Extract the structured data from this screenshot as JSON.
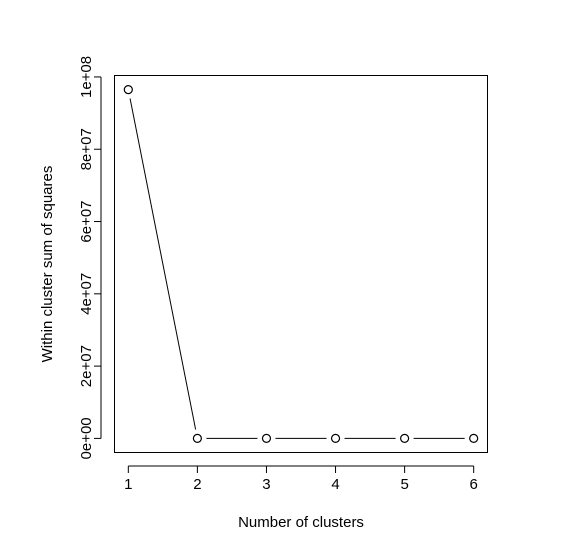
{
  "chart_data": {
    "type": "line",
    "title": "",
    "xlabel": "Number of clusters",
    "ylabel": "Within cluster sum of squares",
    "x": [
      1,
      2,
      3,
      4,
      5,
      6
    ],
    "series": [
      {
        "values": [
          96500000,
          0,
          0,
          0,
          0,
          0
        ]
      }
    ],
    "xlim": [
      0.8,
      6.2
    ],
    "ylim": [
      -3900000,
      100400000
    ],
    "x_ticks": [
      1,
      2,
      3,
      4,
      5,
      6
    ],
    "x_tick_labels": [
      "1",
      "2",
      "3",
      "4",
      "5",
      "6"
    ],
    "y_ticks": [
      0,
      20000000,
      40000000,
      60000000,
      80000000,
      100000000
    ],
    "y_tick_labels": [
      "0e+00",
      "2e+07",
      "4e+07",
      "6e+07",
      "8e+07",
      "1e+08"
    ],
    "grid": false,
    "legend": "none",
    "marker": "open-circle",
    "line_color": "#000000",
    "background": "#ffffff"
  }
}
